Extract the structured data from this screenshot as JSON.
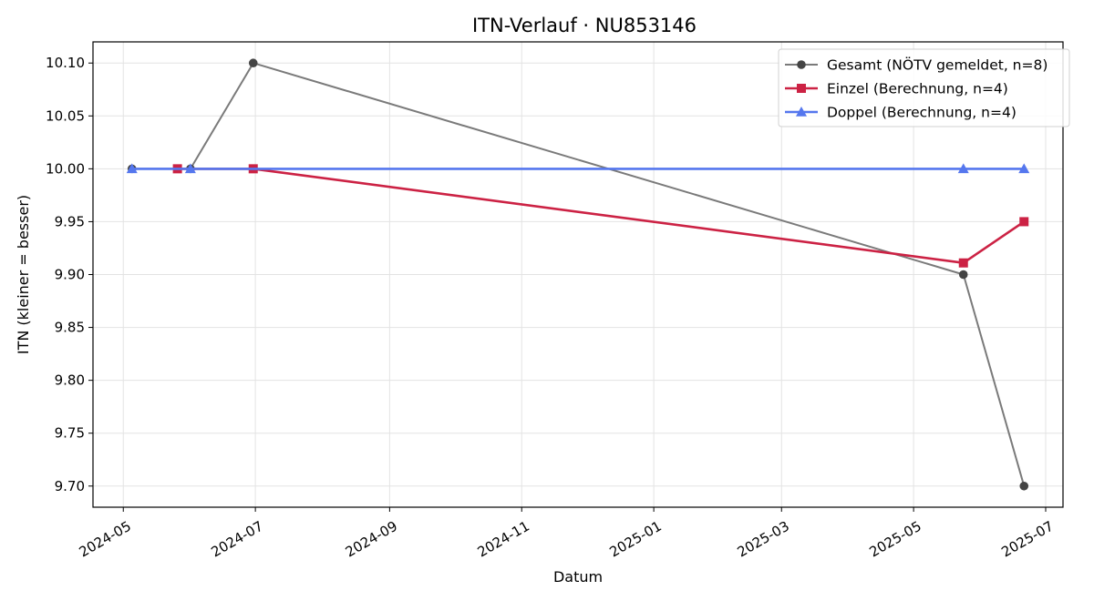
{
  "chart_data": {
    "type": "line",
    "title": "ITN-Verlauf · NU853146",
    "xlabel": "Datum",
    "ylabel": "ITN  (kleiner = besser)",
    "xlim": [
      "2024-04-17",
      "2025-07-09"
    ],
    "ylim": [
      9.68,
      10.12
    ],
    "x_ticks": [
      "2024-05-01",
      "2024-07-01",
      "2024-09-01",
      "2024-11-01",
      "2025-01-01",
      "2025-03-01",
      "2025-05-01",
      "2025-07-01"
    ],
    "x_tick_labels": [
      "2024-05",
      "2024-07",
      "2024-09",
      "2024-11",
      "2025-01",
      "2025-03",
      "2025-05",
      "2025-07"
    ],
    "y_ticks": [
      9.7,
      9.75,
      9.8,
      9.85,
      9.9,
      9.95,
      10.0,
      10.05,
      10.1
    ],
    "y_tick_labels": [
      "9.70",
      "9.75",
      "9.80",
      "9.85",
      "9.90",
      "9.95",
      "10.00",
      "10.05",
      "10.10"
    ],
    "grid": true,
    "legend_position": "top-right",
    "series": [
      {
        "name": "Gesamt (NÖTV gemeldet, n=8)",
        "color": "#7a7a7a",
        "marker_color": "#444444",
        "marker": "circle",
        "x": [
          "2024-05-05",
          "2024-06-01",
          "2024-06-30",
          "2025-05-24",
          "2025-06-21"
        ],
        "y": [
          10.0,
          10.0,
          10.1,
          9.9,
          9.7
        ]
      },
      {
        "name": "Einzel (Berechnung, n=4)",
        "color": "#cc2244",
        "marker_color": "#cc2244",
        "marker": "square",
        "x": [
          "2024-05-26",
          "2024-06-30",
          "2025-05-24",
          "2025-06-21"
        ],
        "y": [
          10.0,
          10.0,
          9.911,
          9.95
        ]
      },
      {
        "name": "Doppel (Berechnung, n=4)",
        "color": "#5577ee",
        "marker_color": "#5577ee",
        "marker": "triangle",
        "x": [
          "2024-05-05",
          "2024-06-01",
          "2025-05-24",
          "2025-06-21"
        ],
        "y": [
          10.0,
          10.0,
          10.0,
          10.0
        ]
      }
    ]
  }
}
